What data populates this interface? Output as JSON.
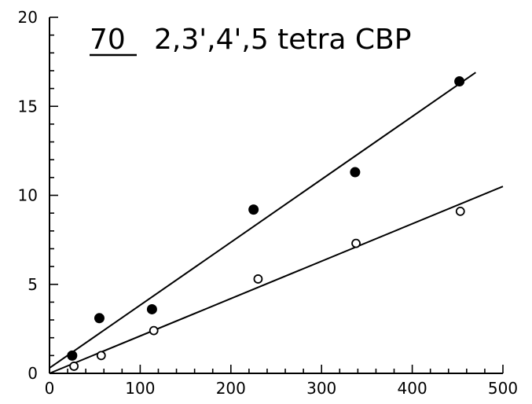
{
  "chart_data": {
    "type": "scatter",
    "title_number": "70",
    "title": "2,3',4',5 tetra CBP",
    "xlabel": "",
    "ylabel": "",
    "xlim": [
      0,
      500
    ],
    "ylim": [
      0,
      20
    ],
    "xticks": [
      0,
      100,
      200,
      300,
      400,
      500
    ],
    "yticks": [
      0,
      5,
      10,
      15,
      20
    ],
    "x_tick_labels": [
      "0",
      "100",
      "200",
      "300",
      "400",
      "500"
    ],
    "y_tick_labels": [
      "0",
      "5",
      "10",
      "15",
      "20"
    ],
    "grid": false,
    "series": [
      {
        "marker": "filled-circle",
        "x": [
          25,
          55,
          113,
          225,
          337,
          452
        ],
        "y": [
          1.0,
          3.1,
          3.6,
          9.2,
          11.3,
          16.4
        ],
        "fit_line": {
          "x": [
            0,
            470
          ],
          "y": [
            0.3,
            16.9
          ]
        }
      },
      {
        "marker": "open-circle",
        "x": [
          27,
          57,
          115,
          230,
          338,
          453
        ],
        "y": [
          0.4,
          1.0,
          2.4,
          5.3,
          7.3,
          9.1
        ],
        "fit_line": {
          "x": [
            0,
            500
          ],
          "y": [
            0.0,
            10.5
          ]
        }
      }
    ]
  }
}
